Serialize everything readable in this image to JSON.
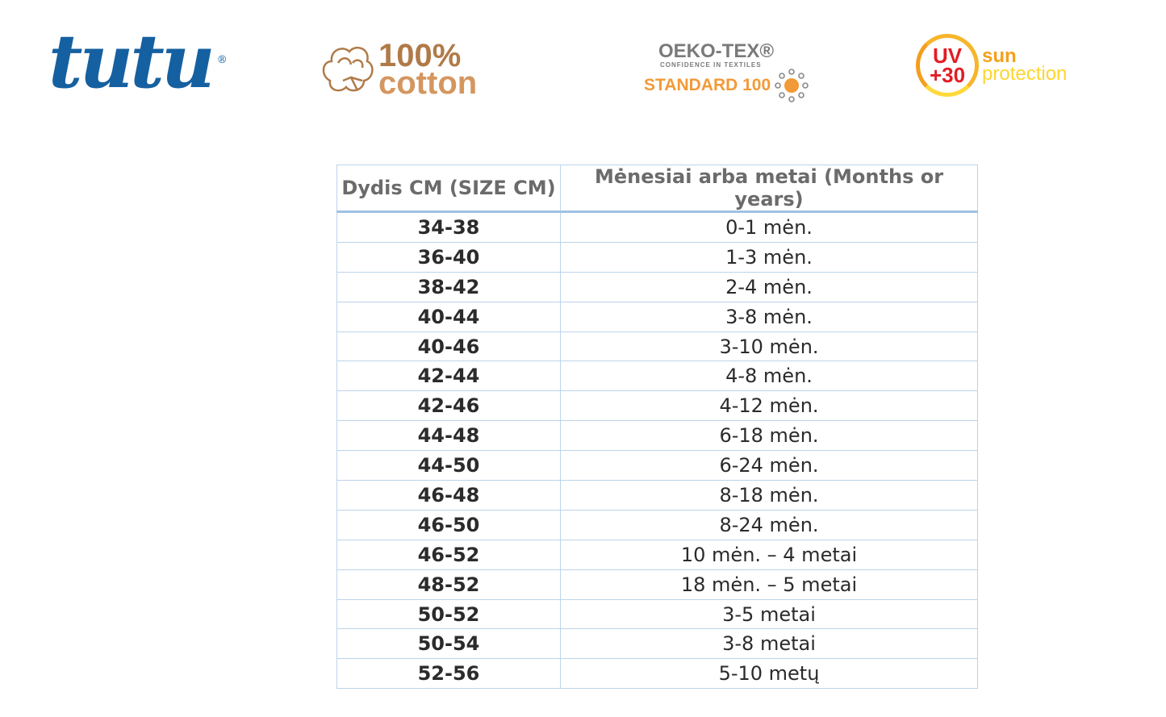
{
  "logos": {
    "tutu": {
      "text": "tutu",
      "mark": "®",
      "color": "#1560a0"
    },
    "cotton": {
      "percent": "100%",
      "word": "cotton",
      "icon": "cotton-boll-icon"
    },
    "oeko": {
      "title": "OEKO-TEX®",
      "tagline": "CONFIDENCE IN TEXTILES",
      "standard": "STANDARD 100",
      "icon": "oeko-flower-icon"
    },
    "uv": {
      "uv": "UV",
      "value": "+30",
      "sun": "sun",
      "protection": "protection"
    }
  },
  "table": {
    "headers": [
      "Dydis CM (SIZE CM)",
      "Mėnesiai arba metai (Months or years)"
    ],
    "rows": [
      [
        "34-38",
        "0-1 mėn."
      ],
      [
        "36-40",
        "1-3 mėn."
      ],
      [
        "38-42",
        "2-4 mėn."
      ],
      [
        "40-44",
        "3-8 mėn."
      ],
      [
        "40-46",
        "3-10 mėn."
      ],
      [
        "42-44",
        "4-8 mėn."
      ],
      [
        "42-46",
        "4-12 mėn."
      ],
      [
        "44-48",
        "6-18 mėn."
      ],
      [
        "44-50",
        "6-24 mėn."
      ],
      [
        "46-48",
        "8-18 mėn."
      ],
      [
        "46-50",
        "8-24 mėn."
      ],
      [
        "46-52",
        "10 mėn. – 4 metai"
      ],
      [
        "48-52",
        "18 mėn. – 5 metai"
      ],
      [
        "50-52",
        "3-5 metai"
      ],
      [
        "50-54",
        "3-8 metai"
      ],
      [
        "52-56",
        "5-10 metų"
      ]
    ]
  }
}
